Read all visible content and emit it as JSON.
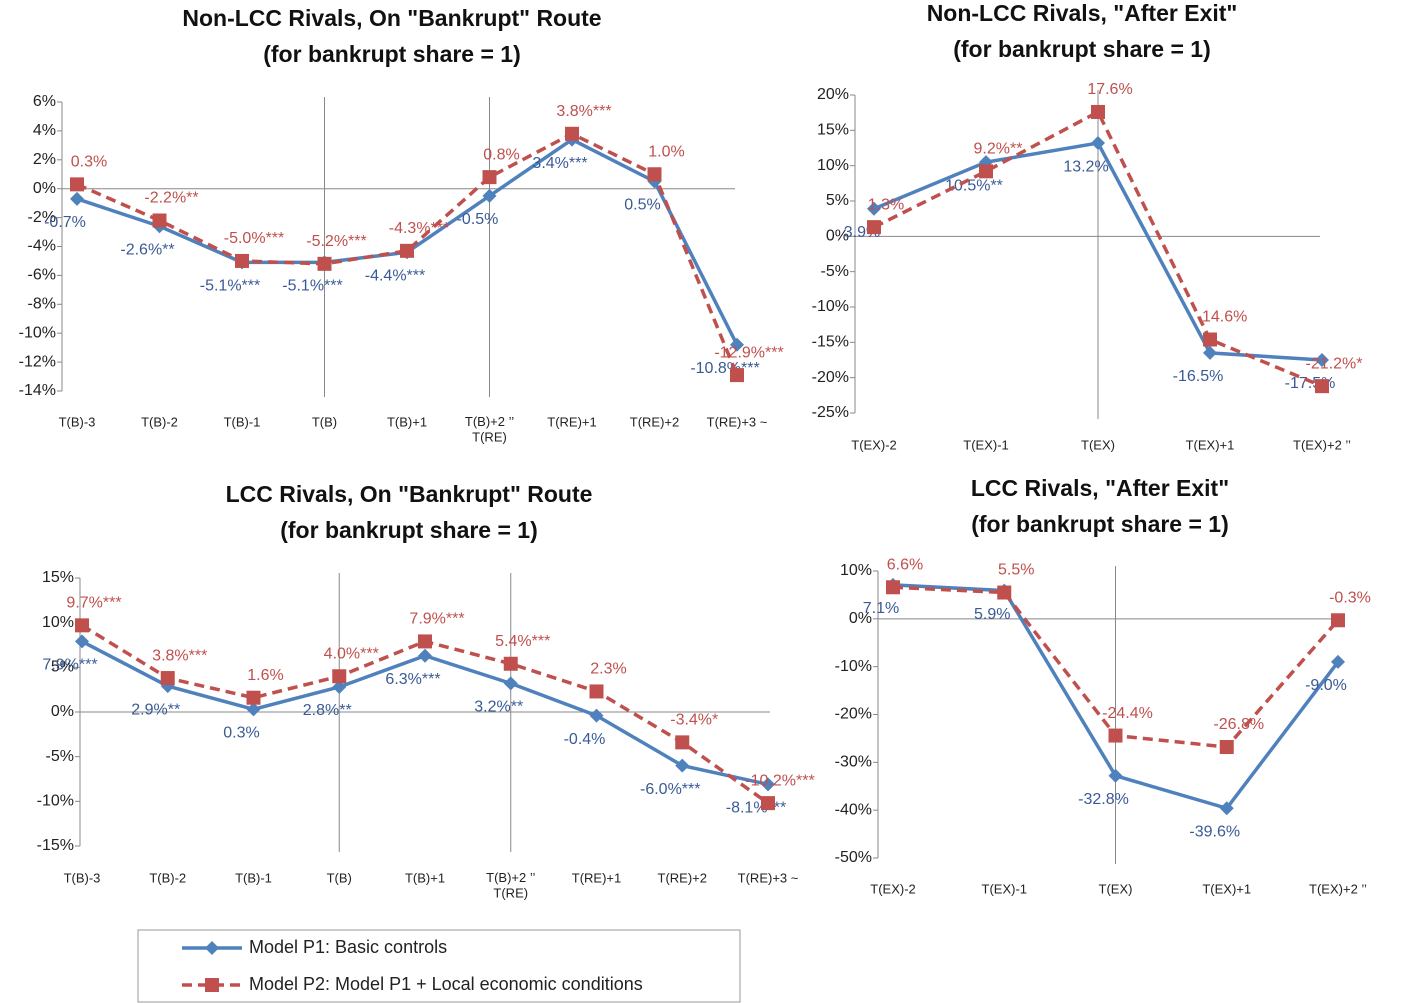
{
  "chart_data": [
    {
      "type": "line",
      "title": "Non-LCC Rivals, On \"Bankrupt\" Route",
      "subtitle": "(for bankrupt share = 1)",
      "categories": [
        "T(B)-3",
        "T(B)-2",
        "T(B)-1",
        "T(B)",
        "T(B)+1",
        "T(B)+2 ’’\nT(RE)",
        "T(RE)+1",
        "T(RE)+2",
        "T(RE)+3 ~"
      ],
      "event_lines": [
        3,
        5
      ],
      "ylim": [
        -14,
        6
      ],
      "yticks": [
        {
          "value": -14,
          "label": "-14%"
        },
        {
          "value": -12,
          "label": "-12%"
        },
        {
          "value": -10,
          "label": "-10%"
        },
        {
          "value": -8,
          "label": "-8%"
        },
        {
          "value": -6,
          "label": "-6%"
        },
        {
          "value": -4,
          "label": "-4%"
        },
        {
          "value": -2,
          "label": "-2%"
        },
        {
          "value": 0,
          "label": "0%"
        },
        {
          "value": 2,
          "label": "2%"
        },
        {
          "value": 4,
          "label": "4%"
        },
        {
          "value": 6,
          "label": "6%"
        }
      ],
      "series": [
        {
          "name": "Model P1: Basic controls",
          "color": "#4f81bd",
          "values": [
            -0.7,
            -2.6,
            -5.1,
            -5.1,
            -4.4,
            -0.5,
            3.4,
            0.5,
            -10.8
          ],
          "value_labels": [
            "-0.7%",
            "-2.6%**",
            "-5.1%***",
            "-5.1%***",
            "-4.4%***",
            "-0.5%",
            "3.4%***",
            "0.5%",
            "-10.8%***"
          ]
        },
        {
          "name": "Model P2: Model P1 + Local economic conditions",
          "color": "#c0504d",
          "values": [
            0.3,
            -2.2,
            -5.0,
            -5.2,
            -4.3,
            0.8,
            3.8,
            1.0,
            -12.9
          ],
          "value_labels": [
            "0.3%",
            "-2.2%**",
            "-5.0%***",
            "-5.2%***",
            "-4.3%***",
            "0.8%",
            "3.8%***",
            "1.0%",
            "-12.9%***"
          ]
        }
      ]
    },
    {
      "type": "line",
      "title": "Non-LCC Rivals, \"After Exit\"",
      "subtitle": "(for bankrupt share = 1)",
      "categories": [
        "T(EX)-2",
        "T(EX)-1",
        "T(EX)",
        "T(EX)+1",
        "T(EX)+2 ’’"
      ],
      "event_lines": [
        2
      ],
      "ylim": [
        -25,
        20
      ],
      "yticks": [
        {
          "value": -25,
          "label": "-25%"
        },
        {
          "value": -20,
          "label": "-20%"
        },
        {
          "value": -15,
          "label": "-15%"
        },
        {
          "value": -10,
          "label": "-10%"
        },
        {
          "value": -5,
          "label": "-5%"
        },
        {
          "value": 0,
          "label": "0%"
        },
        {
          "value": 5,
          "label": "5%"
        },
        {
          "value": 10,
          "label": "10%"
        },
        {
          "value": 15,
          "label": "15%"
        },
        {
          "value": 20,
          "label": "20%"
        }
      ],
      "series": [
        {
          "color": "#4f81bd",
          "values": [
            3.9,
            10.5,
            13.2,
            -16.5,
            -17.5
          ],
          "value_labels": [
            "3.9%",
            "10.5%**",
            "13.2%",
            "-16.5%",
            "-17.5%"
          ]
        },
        {
          "color": "#c0504d",
          "values": [
            1.3,
            9.2,
            17.6,
            -14.6,
            -21.2
          ],
          "value_labels": [
            "1.3%",
            "9.2%**",
            "17.6%",
            "-14.6%",
            "-21.2%*"
          ]
        }
      ]
    },
    {
      "type": "line",
      "title": "LCC Rivals, On \"Bankrupt\" Route",
      "subtitle": "(for bankrupt share = 1)",
      "categories": [
        "T(B)-3",
        "T(B)-2",
        "T(B)-1",
        "T(B)",
        "T(B)+1",
        "T(B)+2 ’’\nT(RE)",
        "T(RE)+1",
        "T(RE)+2",
        "T(RE)+3 ~"
      ],
      "event_lines": [
        3,
        5
      ],
      "ylim": [
        -15,
        15
      ],
      "yticks": [
        {
          "value": -15,
          "label": "-15%"
        },
        {
          "value": -10,
          "label": "-10%"
        },
        {
          "value": -5,
          "label": "-5%"
        },
        {
          "value": 0,
          "label": "0%"
        },
        {
          "value": 5,
          "label": "5%"
        },
        {
          "value": 10,
          "label": "10%"
        },
        {
          "value": 15,
          "label": "15%"
        }
      ],
      "series": [
        {
          "color": "#4f81bd",
          "values": [
            7.9,
            2.9,
            0.3,
            2.8,
            6.3,
            3.2,
            -0.4,
            -6.0,
            -8.1
          ],
          "value_labels": [
            "7.9%***",
            "2.9%**",
            "0.3%",
            "2.8%**",
            "6.3%***",
            "3.2%**",
            "-0.4%",
            "-6.0%***",
            "-8.1%***"
          ]
        },
        {
          "color": "#c0504d",
          "values": [
            9.7,
            3.8,
            1.6,
            4.0,
            7.9,
            5.4,
            2.3,
            -3.4,
            -10.2
          ],
          "value_labels": [
            "9.7%***",
            "3.8%***",
            "1.6%",
            "4.0%***",
            "7.9%***",
            "5.4%***",
            "2.3%",
            "-3.4%*",
            "-10.2%***"
          ]
        }
      ]
    },
    {
      "type": "line",
      "title": "LCC Rivals, \"After Exit\"",
      "subtitle": "(for bankrupt share = 1)",
      "categories": [
        "T(EX)-2",
        "T(EX)-1",
        "T(EX)",
        "T(EX)+1",
        "T(EX)+2 ’’"
      ],
      "event_lines": [
        2
      ],
      "ylim": [
        -50,
        10
      ],
      "yticks": [
        {
          "value": -50,
          "label": "-50%"
        },
        {
          "value": -40,
          "label": "-40%"
        },
        {
          "value": -30,
          "label": "-30%"
        },
        {
          "value": -20,
          "label": "-20%"
        },
        {
          "value": -10,
          "label": "-10%"
        },
        {
          "value": 0,
          "label": "0%"
        },
        {
          "value": 10,
          "label": "10%"
        }
      ],
      "series": [
        {
          "color": "#4f81bd",
          "values": [
            7.1,
            5.9,
            -32.8,
            -39.6,
            -9.0
          ],
          "value_labels": [
            "7.1%",
            "5.9%",
            "-32.8%",
            "-39.6%",
            "-9.0%"
          ]
        },
        {
          "color": "#c0504d",
          "values": [
            6.6,
            5.5,
            -24.4,
            -26.8,
            -0.3
          ],
          "value_labels": [
            "6.6%",
            "5.5%",
            "-24.4%",
            "-26.8%",
            "-0.3%"
          ]
        }
      ]
    }
  ]
}
